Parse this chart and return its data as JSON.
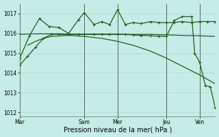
{
  "title": "Pression niveau de la mer( hPa )",
  "background_color": "#c5ece6",
  "grid_color": "#b0d8cc",
  "line_color": "#1e5c1e",
  "ylim": [
    1011.8,
    1017.5
  ],
  "yticks": [
    1012,
    1013,
    1014,
    1015,
    1016,
    1017
  ],
  "day_labels": [
    "Mar",
    "Sam",
    "Mer",
    "Jeu",
    "Ven"
  ],
  "day_positions": [
    0.0,
    0.33,
    0.5,
    0.75,
    0.92
  ],
  "xlim": [
    0.0,
    1.0
  ],
  "series": [
    {
      "x": [
        0.0,
        0.04,
        0.08,
        0.12,
        0.16,
        0.2,
        0.25,
        0.33,
        0.42,
        0.5,
        0.58,
        0.67,
        0.75,
        0.83,
        0.92,
        1.0
      ],
      "y": [
        1015.95,
        1015.97,
        1015.98,
        1015.98,
        1015.98,
        1015.98,
        1015.97,
        1015.97,
        1015.97,
        1015.96,
        1015.95,
        1015.95,
        1015.93,
        1015.9,
        1015.88,
        1015.85
      ],
      "marker": false,
      "lw": 0.9
    },
    {
      "x": [
        0.04,
        0.08,
        0.12,
        0.16,
        0.2,
        0.25,
        0.33,
        0.42,
        0.5,
        0.58,
        0.67,
        0.75,
        0.83,
        0.92,
        1.0
      ],
      "y": [
        1015.4,
        1015.6,
        1015.75,
        1015.85,
        1015.87,
        1015.9,
        1015.85,
        1015.75,
        1015.6,
        1015.4,
        1015.1,
        1014.75,
        1014.35,
        1013.9,
        1013.45
      ],
      "marker": false,
      "lw": 0.9
    },
    {
      "x": [
        0.0,
        0.05,
        0.1,
        0.15,
        0.2,
        0.25,
        0.3,
        0.33,
        0.38,
        0.42,
        0.46,
        0.5,
        0.54,
        0.58,
        0.62,
        0.67,
        0.71,
        0.75,
        0.79,
        0.83,
        0.88,
        0.92,
        0.96,
        1.0
      ],
      "y": [
        1014.75,
        1015.9,
        1016.75,
        1016.35,
        1016.3,
        1016.0,
        1016.7,
        1017.05,
        1016.45,
        1016.6,
        1016.45,
        1017.2,
        1016.45,
        1016.55,
        1016.5,
        1016.6,
        1016.55,
        1016.55,
        1016.55,
        1016.6,
        1016.55,
        1016.6,
        1016.6,
        1016.6
      ],
      "marker": true,
      "lw": 0.9
    },
    {
      "x": [
        0.0,
        0.04,
        0.08,
        0.12,
        0.16,
        0.2,
        0.25,
        0.3,
        0.33,
        0.38,
        0.42,
        0.46,
        0.5,
        0.54,
        0.58,
        0.62,
        0.67,
        0.71,
        0.75,
        0.79,
        0.83,
        0.88,
        0.895,
        0.92,
        0.95,
        0.975,
        1.0
      ],
      "y": [
        1014.4,
        1014.85,
        1015.3,
        1015.75,
        1015.95,
        1015.95,
        1015.95,
        1015.95,
        1015.95,
        1015.95,
        1015.95,
        1015.95,
        1015.95,
        1015.95,
        1015.92,
        1015.9,
        1015.88,
        1015.86,
        1015.85,
        1016.65,
        1016.85,
        1016.85,
        1015.0,
        1014.55,
        1013.35,
        1013.3,
        1012.25
      ],
      "marker": true,
      "lw": 0.9
    }
  ],
  "vline_color": "#556655",
  "vline_lw": 0.7,
  "tick_fontsize": 5.5,
  "xlabel_fontsize": 7.0
}
